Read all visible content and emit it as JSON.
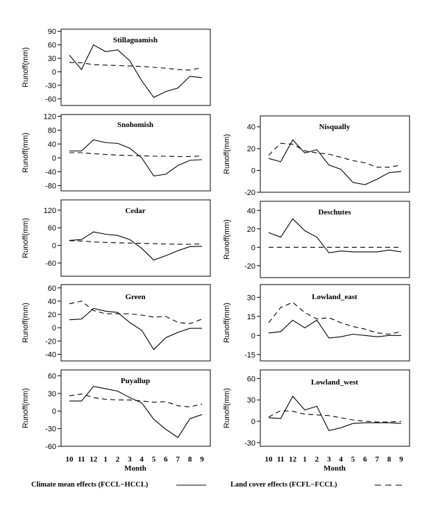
{
  "months": [
    "10",
    "11",
    "12",
    "1",
    "2",
    "3",
    "4",
    "5",
    "6",
    "7",
    "8",
    "9"
  ],
  "month_label": "Month",
  "legend": {
    "climate_label": "Climate mean effects (FCCL−HCCL)",
    "land_label": "Land cover effects (FCFL−FCCL)"
  },
  "colors": {
    "line": "#000000",
    "frame": "#000000",
    "background": "#ffffff"
  },
  "chart_data": [
    {
      "id": "stillaguamish",
      "type": "line",
      "title": "Stillaguamish",
      "ylabel": "Runoff(mm)",
      "ylim": [
        -75,
        95
      ],
      "yticks": [
        90,
        60,
        30,
        0,
        -30,
        -60
      ],
      "x": [
        "10",
        "11",
        "12",
        "1",
        "2",
        "3",
        "4",
        "5",
        "6",
        "7",
        "8",
        "9"
      ],
      "series": [
        {
          "style": "solid",
          "values": [
            37,
            5,
            60,
            45,
            49,
            25,
            -20,
            -57,
            -44,
            -36,
            -10,
            -13
          ]
        },
        {
          "style": "dashed",
          "values": [
            21,
            20,
            16,
            15,
            14,
            13,
            12,
            10,
            8,
            5,
            4,
            9
          ]
        }
      ]
    },
    {
      "id": "snohomish",
      "type": "line",
      "title": "Snohomish",
      "ylabel": "Runoff(mm)",
      "ylim": [
        -95,
        125
      ],
      "yticks": [
        120,
        80,
        40,
        0,
        -40,
        -80
      ],
      "x": [
        "10",
        "11",
        "12",
        "1",
        "2",
        "3",
        "4",
        "5",
        "6",
        "7",
        "8",
        "9"
      ],
      "series": [
        {
          "style": "solid",
          "values": [
            20,
            20,
            52,
            44,
            42,
            28,
            0,
            -52,
            -47,
            -22,
            -7,
            -5
          ]
        },
        {
          "style": "dashed",
          "values": [
            15,
            15,
            12,
            10,
            8,
            7,
            6,
            5,
            5,
            4,
            4,
            6
          ]
        }
      ]
    },
    {
      "id": "nisqually",
      "type": "line",
      "title": "Nisqually",
      "ylabel": "Runoff(mm)",
      "ylim": [
        -20,
        50
      ],
      "yticks": [
        40,
        20,
        0,
        -20
      ],
      "x": [
        "10",
        "11",
        "12",
        "1",
        "2",
        "3",
        "4",
        "5",
        "6",
        "7",
        "8",
        "9"
      ],
      "series": [
        {
          "style": "solid",
          "values": [
            11,
            8,
            28,
            16,
            19,
            5,
            1,
            -11,
            -13,
            -8,
            -2,
            -1
          ]
        },
        {
          "style": "dashed",
          "values": [
            14,
            25,
            24,
            18,
            16,
            15,
            12,
            9,
            7,
            3,
            3,
            5
          ]
        }
      ]
    },
    {
      "id": "cedar",
      "type": "line",
      "title": "Cedar",
      "ylabel": "Runoff(mm)",
      "ylim": [
        -105,
        155
      ],
      "yticks": [
        120,
        60,
        0,
        -60
      ],
      "x": [
        "10",
        "11",
        "12",
        "1",
        "2",
        "3",
        "4",
        "5",
        "6",
        "7",
        "8",
        "9"
      ],
      "series": [
        {
          "style": "solid",
          "values": [
            17,
            20,
            46,
            38,
            34,
            20,
            -10,
            -50,
            -35,
            -18,
            -4,
            -3
          ]
        },
        {
          "style": "dashed",
          "values": [
            16,
            15,
            12,
            10,
            9,
            8,
            7,
            6,
            5,
            4,
            4,
            5
          ]
        }
      ]
    },
    {
      "id": "deschutes",
      "type": "line",
      "title": "Deschutes",
      "ylabel": "Runoff(mm)",
      "ylim": [
        -33,
        50
      ],
      "yticks": [
        40,
        20,
        0,
        -20
      ],
      "x": [
        "10",
        "11",
        "12",
        "1",
        "2",
        "3",
        "4",
        "5",
        "6",
        "7",
        "8",
        "9"
      ],
      "series": [
        {
          "style": "solid",
          "values": [
            16,
            11,
            31,
            18,
            11,
            -6,
            -4,
            -5,
            -5,
            -5,
            -3,
            -5
          ]
        },
        {
          "style": "dashed",
          "values": [
            0,
            0,
            0,
            0,
            0,
            0,
            0,
            0,
            0,
            0,
            0,
            0
          ]
        }
      ]
    },
    {
      "id": "green",
      "type": "line",
      "title": "Green",
      "ylabel": "Runoff(mm)",
      "ylim": [
        -50,
        65
      ],
      "yticks": [
        60,
        40,
        20,
        0,
        -20,
        -40
      ],
      "x": [
        "10",
        "11",
        "12",
        "1",
        "2",
        "3",
        "4",
        "5",
        "6",
        "7",
        "8",
        "9"
      ],
      "series": [
        {
          "style": "solid",
          "values": [
            12,
            13,
            29,
            25,
            23,
            8,
            -4,
            -33,
            -15,
            -7,
            -1,
            -1
          ]
        },
        {
          "style": "dashed",
          "values": [
            36,
            40,
            26,
            21,
            21,
            21,
            19,
            16,
            17,
            8,
            6,
            13
          ]
        }
      ]
    },
    {
      "id": "lowland_east",
      "type": "line",
      "title": "Lowland_east",
      "ylabel": "Runoff(mm)",
      "ylim": [
        -20,
        40
      ],
      "yticks": [
        30,
        15,
        0,
        -15
      ],
      "x": [
        "10",
        "11",
        "12",
        "1",
        "2",
        "3",
        "4",
        "5",
        "6",
        "7",
        "8",
        "9"
      ],
      "series": [
        {
          "style": "solid",
          "values": [
            2,
            3,
            12,
            6,
            12,
            -2,
            -1,
            1,
            0,
            -1,
            0,
            0
          ]
        },
        {
          "style": "dashed",
          "values": [
            10,
            22,
            26,
            18,
            13,
            14,
            10,
            7,
            5,
            2,
            1,
            3
          ]
        }
      ]
    },
    {
      "id": "puyallup",
      "type": "line",
      "title": "Puyallup",
      "ylabel": "Runoff(mm)",
      "ylim": [
        -60,
        70
      ],
      "yticks": [
        60,
        30,
        0,
        -30,
        -60
      ],
      "x": [
        "10",
        "11",
        "12",
        "1",
        "2",
        "3",
        "4",
        "5",
        "6",
        "7",
        "8",
        "9"
      ],
      "series": [
        {
          "style": "solid",
          "values": [
            17,
            17,
            42,
            38,
            34,
            23,
            14,
            -14,
            -31,
            -45,
            -13,
            -6
          ]
        },
        {
          "style": "dashed",
          "values": [
            26,
            29,
            23,
            20,
            19,
            19,
            17,
            15,
            16,
            9,
            7,
            12
          ]
        }
      ]
    },
    {
      "id": "lowland_west",
      "type": "line",
      "title": "Lowland_west",
      "ylabel": "Runoff(mm)",
      "ylim": [
        -35,
        72
      ],
      "yticks": [
        60,
        30,
        0,
        -30
      ],
      "x": [
        "10",
        "11",
        "12",
        "1",
        "2",
        "3",
        "4",
        "5",
        "6",
        "7",
        "8",
        "9"
      ],
      "series": [
        {
          "style": "solid",
          "values": [
            5,
            4,
            35,
            16,
            21,
            -13,
            -9,
            -3,
            -2,
            -2,
            -2,
            -3
          ]
        },
        {
          "style": "dashed",
          "values": [
            6,
            15,
            14,
            10,
            9,
            8,
            5,
            2,
            0,
            -1,
            -1,
            0
          ]
        }
      ]
    }
  ]
}
